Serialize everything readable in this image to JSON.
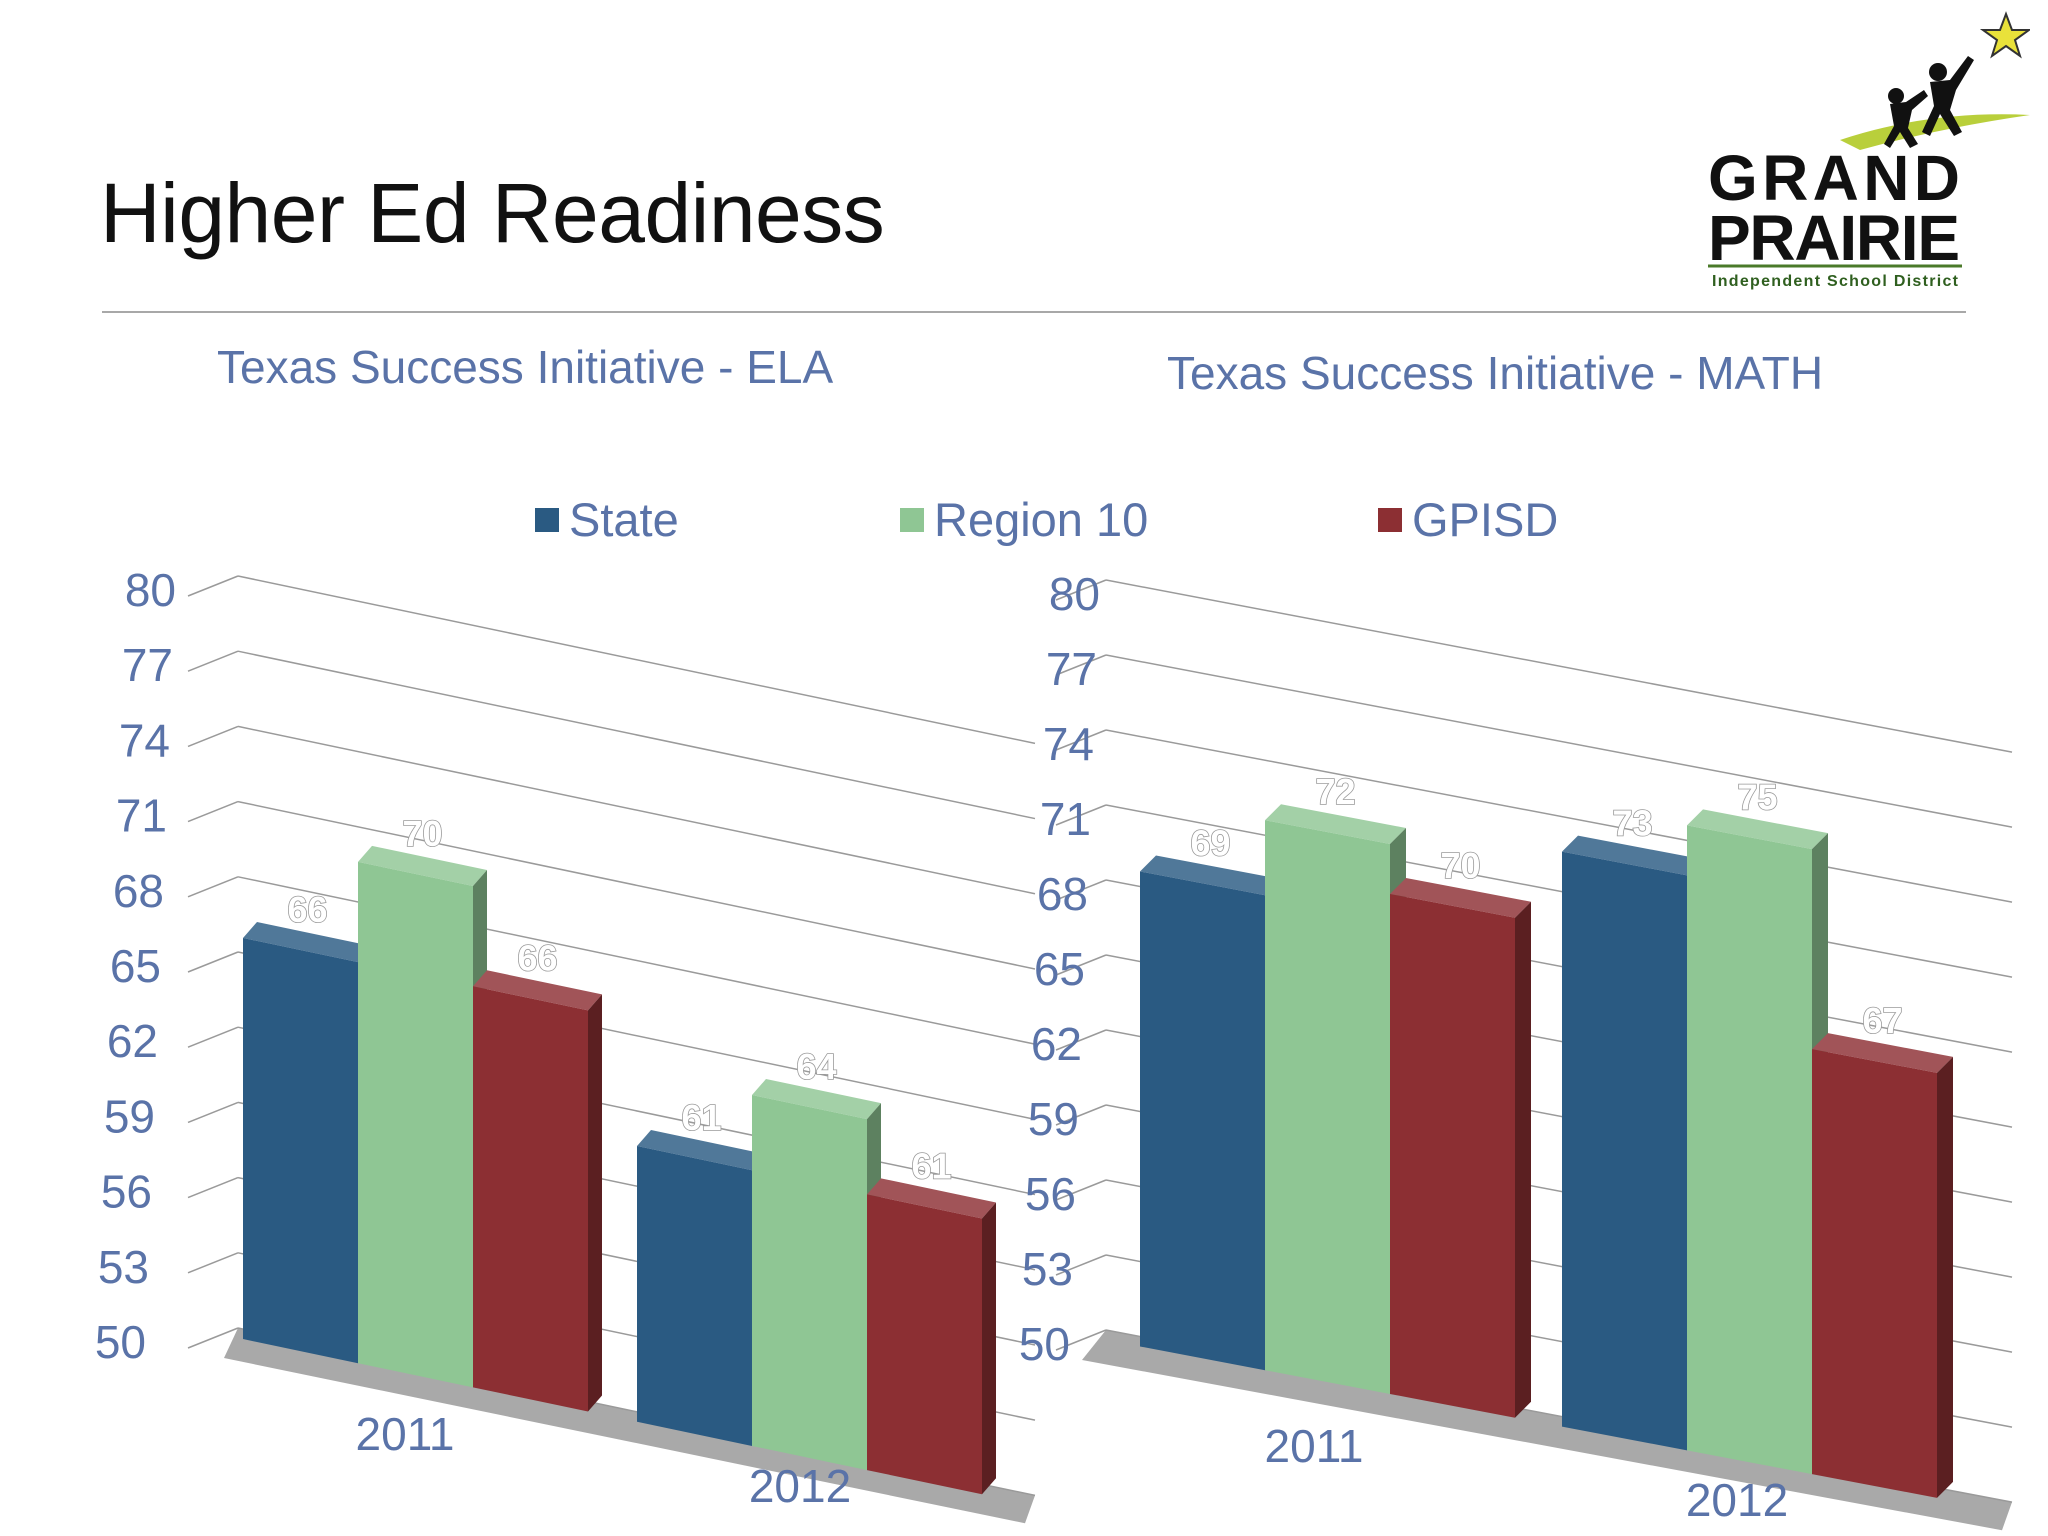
{
  "slide": {
    "title": "Higher Ed Readiness"
  },
  "logo": {
    "line1": "GRAND",
    "line2": "PRAIRIE",
    "line3": "Independent School District",
    "icon": "star-climbers-icon"
  },
  "legend": [
    {
      "name": "State",
      "color": "#2a5a82"
    },
    {
      "name": "Region 10",
      "color": "#8fc694"
    },
    {
      "name": "GPISD",
      "color": "#8c2f33"
    }
  ],
  "chart_data": [
    {
      "type": "bar",
      "title": "Texas Success Initiative - ELA",
      "categories": [
        "2011",
        "2012"
      ],
      "series": [
        {
          "name": "State",
          "values": [
            66,
            61
          ]
        },
        {
          "name": "Region 10",
          "values": [
            70,
            64
          ]
        },
        {
          "name": "GPISD",
          "values": [
            66,
            61
          ]
        }
      ],
      "yticks": [
        50,
        53,
        56,
        59,
        62,
        65,
        68,
        71,
        74,
        77,
        80
      ],
      "ylim": [
        50,
        80
      ],
      "grid": true,
      "legend_position": "top"
    },
    {
      "type": "bar",
      "title": "Texas Success Initiative - MATH",
      "categories": [
        "2011",
        "2012"
      ],
      "series": [
        {
          "name": "State",
          "values": [
            69,
            73
          ]
        },
        {
          "name": "Region 10",
          "values": [
            72,
            75
          ]
        },
        {
          "name": "GPISD",
          "values": [
            70,
            67
          ]
        }
      ],
      "yticks": [
        50,
        53,
        56,
        59,
        62,
        65,
        68,
        71,
        74,
        77,
        80
      ],
      "ylim": [
        50,
        80
      ],
      "grid": true,
      "legend_position": "top"
    }
  ]
}
